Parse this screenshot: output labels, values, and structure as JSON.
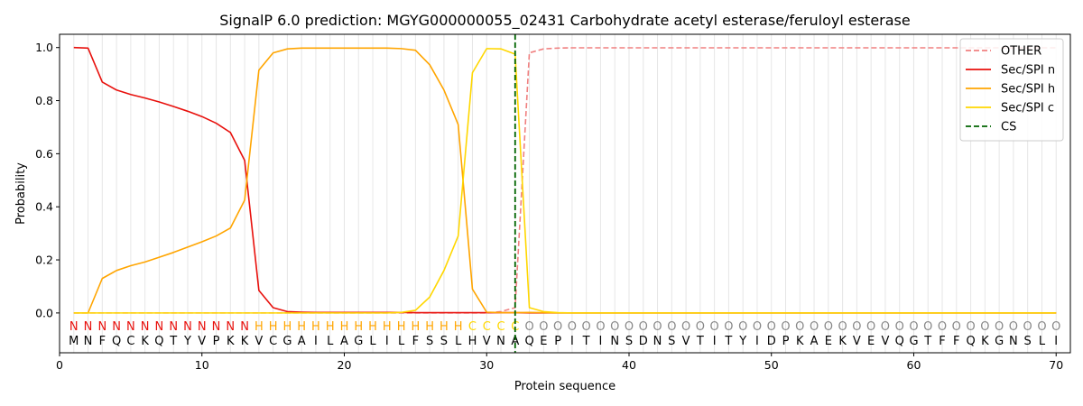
{
  "chart_data": {
    "type": "line",
    "title": "SignalP 6.0 prediction: MGYG000000055_02431 Carbohydrate acetyl esterase/feruloyl esterase",
    "xlabel": "Protein sequence",
    "ylabel": "Probability",
    "xlim": [
      0,
      71
    ],
    "ylim": [
      -0.15,
      1.05
    ],
    "x_ticks": [
      0,
      10,
      20,
      30,
      40,
      50,
      60,
      70
    ],
    "y_ticks": [
      0.0,
      0.2,
      0.4,
      0.6,
      0.8,
      1.0
    ],
    "x_tick_labels": [
      "0",
      "10",
      "20",
      "30",
      "40",
      "50",
      "60",
      "70"
    ],
    "y_tick_labels": [
      "0.0",
      "0.2",
      "0.4",
      "0.6",
      "0.8",
      "1.0"
    ],
    "grid": "vertical lines at each residue",
    "legend_position": "top-right",
    "sequence": [
      "M",
      "N",
      "F",
      "Q",
      "C",
      "K",
      "Q",
      "T",
      "Y",
      "V",
      "P",
      "K",
      "K",
      "V",
      "C",
      "G",
      "A",
      "I",
      "L",
      "A",
      "G",
      "L",
      "I",
      "L",
      "F",
      "S",
      "S",
      "L",
      "H",
      "V",
      "N",
      "A",
      "Q",
      "E",
      "P",
      "I",
      "T",
      "I",
      "N",
      "S",
      "D",
      "N",
      "S",
      "V",
      "T",
      "I",
      "T",
      "Y",
      "I",
      "D",
      "P",
      "K",
      "A",
      "E",
      "K",
      "V",
      "E",
      "V",
      "Q",
      "G",
      "T",
      "F",
      "F",
      "Q",
      "K",
      "G",
      "N",
      "S",
      "L",
      "I"
    ],
    "region_labels": [
      "N",
      "N",
      "N",
      "N",
      "N",
      "N",
      "N",
      "N",
      "N",
      "N",
      "N",
      "N",
      "N",
      "H",
      "H",
      "H",
      "H",
      "H",
      "H",
      "H",
      "H",
      "H",
      "H",
      "H",
      "H",
      "H",
      "H",
      "H",
      "C",
      "C",
      "C",
      "C",
      "O",
      "O",
      "O",
      "O",
      "O",
      "O",
      "O",
      "O",
      "O",
      "O",
      "O",
      "O",
      "O",
      "O",
      "O",
      "O",
      "O",
      "O",
      "O",
      "O",
      "O",
      "O",
      "O",
      "O",
      "O",
      "O",
      "O",
      "O",
      "O",
      "O",
      "O",
      "O",
      "O",
      "O",
      "O",
      "O",
      "O",
      "O"
    ],
    "region_colors": {
      "N": "#e8100c",
      "H": "#ffa500",
      "C": "#ffd700",
      "O": "#888888"
    },
    "cs_position": 32,
    "series": [
      {
        "name": "OTHER",
        "color": "#f08080",
        "dash": "dashed",
        "values": [
          0,
          0,
          0,
          0,
          0,
          0,
          0,
          0,
          0,
          0,
          0,
          0,
          0,
          0,
          0,
          0,
          0,
          0,
          0,
          0,
          0,
          0,
          0,
          0,
          0,
          0,
          0,
          0,
          0,
          0,
          0.005,
          0.02,
          0.98,
          0.995,
          0.998,
          0.999,
          0.999,
          0.999,
          0.999,
          0.999,
          0.999,
          0.999,
          0.999,
          0.999,
          0.999,
          0.999,
          0.999,
          0.999,
          0.999,
          0.999,
          0.999,
          0.999,
          0.999,
          0.999,
          0.999,
          0.999,
          0.999,
          0.999,
          0.999,
          0.999,
          0.999,
          0.999,
          0.999,
          0.999,
          0.999,
          0.999,
          0.999,
          0.999,
          0.999,
          0.999
        ]
      },
      {
        "name": "Sec/SPI n",
        "color": "#e8100c",
        "dash": "solid",
        "values": [
          1.0,
          0.998,
          0.87,
          0.84,
          0.823,
          0.81,
          0.795,
          0.778,
          0.76,
          0.74,
          0.715,
          0.68,
          0.575,
          0.085,
          0.02,
          0.005,
          0.003,
          0.002,
          0.002,
          0.002,
          0.002,
          0.002,
          0.002,
          0.002,
          0.001,
          0.001,
          0.001,
          0.001,
          0.001,
          0.001,
          0.001,
          0.001,
          0,
          0,
          0,
          0,
          0,
          0,
          0,
          0,
          0,
          0,
          0,
          0,
          0,
          0,
          0,
          0,
          0,
          0,
          0,
          0,
          0,
          0,
          0,
          0,
          0,
          0,
          0,
          0,
          0,
          0,
          0,
          0,
          0,
          0,
          0,
          0,
          0,
          0
        ]
      },
      {
        "name": "Sec/SPI h",
        "color": "#ffa500",
        "dash": "solid",
        "values": [
          0,
          0,
          0.13,
          0.16,
          0.178,
          0.192,
          0.21,
          0.228,
          0.248,
          0.268,
          0.29,
          0.32,
          0.425,
          0.915,
          0.98,
          0.995,
          0.998,
          0.998,
          0.998,
          0.998,
          0.998,
          0.998,
          0.998,
          0.996,
          0.99,
          0.935,
          0.84,
          0.71,
          0.09,
          0.003,
          0.001,
          0.001,
          0.002,
          0.001,
          0,
          0,
          0,
          0,
          0,
          0,
          0,
          0,
          0,
          0,
          0,
          0,
          0,
          0,
          0,
          0,
          0,
          0,
          0,
          0,
          0,
          0,
          0,
          0,
          0,
          0,
          0,
          0,
          0,
          0,
          0,
          0,
          0,
          0,
          0,
          0
        ]
      },
      {
        "name": "Sec/SPI c",
        "color": "#ffd700",
        "dash": "solid",
        "values": [
          0,
          0,
          0,
          0,
          0,
          0,
          0,
          0,
          0,
          0,
          0,
          0,
          0,
          0,
          0,
          0,
          0,
          0,
          0,
          0,
          0,
          0,
          0,
          0.002,
          0.01,
          0.06,
          0.16,
          0.29,
          0.905,
          0.996,
          0.995,
          0.975,
          0.02,
          0.005,
          0.001,
          0,
          0,
          0,
          0,
          0,
          0,
          0,
          0,
          0,
          0,
          0,
          0,
          0,
          0,
          0,
          0,
          0,
          0,
          0,
          0,
          0,
          0,
          0,
          0,
          0,
          0,
          0,
          0,
          0,
          0,
          0,
          0,
          0,
          0,
          0
        ]
      },
      {
        "name": "CS",
        "color": "#006400",
        "dash": "dashed",
        "values": []
      }
    ]
  }
}
